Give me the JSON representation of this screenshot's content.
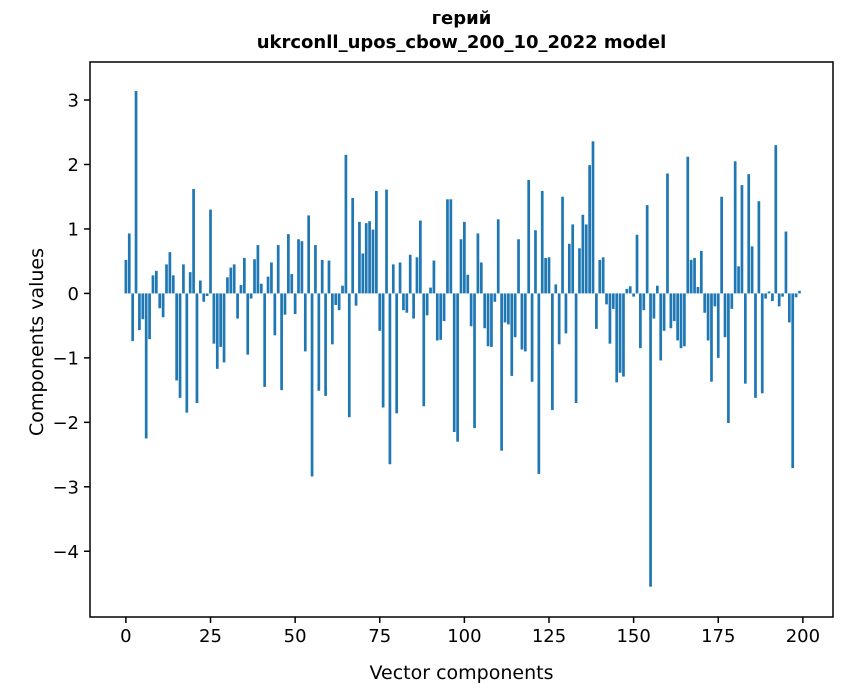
{
  "figure": {
    "title_line1": "герий",
    "title_line2": "ukrconll_upos_cbow_200_10_2022 model",
    "background_color": "#ffffff",
    "bar_color": "#1f77b4",
    "spine_color": "#000000",
    "text_color": "#000000"
  },
  "chart_data": {
    "type": "bar",
    "title": "герий",
    "subtitle": "ukrconll_upos_cbow_200_10_2022 model",
    "xlabel": "Vector components",
    "ylabel": "Components values",
    "legend": null,
    "grid": false,
    "xlim": [
      -10.6,
      208.9
    ],
    "ylim": [
      -5.02,
      3.59
    ],
    "x_ticks": [
      0,
      25,
      50,
      75,
      100,
      125,
      150,
      175,
      200
    ],
    "x_tick_labels": [
      "0",
      "25",
      "50",
      "75",
      "100",
      "125",
      "150",
      "175",
      "200"
    ],
    "y_ticks": [
      3,
      2,
      1,
      0,
      -1,
      -2,
      -3,
      -4
    ],
    "y_tick_labels": [
      "3",
      "2",
      "1",
      "0",
      "−1",
      "−2",
      "−3",
      "−4"
    ],
    "bar_width_units": 0.8,
    "values": [
      0.52,
      0.93,
      -0.74,
      3.14,
      -0.57,
      -0.4,
      -2.25,
      -0.71,
      0.28,
      0.35,
      -0.23,
      -0.37,
      0.45,
      0.64,
      0.28,
      -1.35,
      -1.62,
      0.45,
      -1.85,
      0.33,
      1.62,
      -1.7,
      0.2,
      -0.13,
      -0.04,
      1.3,
      -0.78,
      -1.17,
      -0.83,
      -1.07,
      0.25,
      0.4,
      0.45,
      -0.39,
      0.13,
      0.55,
      -0.95,
      -0.08,
      0.53,
      0.75,
      0.15,
      -1.45,
      0.26,
      0.48,
      -0.65,
      0.75,
      -1.5,
      -0.33,
      0.92,
      0.3,
      -0.32,
      0.84,
      0.81,
      -0.9,
      1.21,
      -2.84,
      0.75,
      -1.51,
      0.52,
      -1.59,
      0.51,
      -0.79,
      -0.18,
      -0.26,
      0.12,
      2.15,
      -1.92,
      1.48,
      -0.19,
      1.11,
      0.62,
      1.09,
      1.12,
      0.99,
      1.59,
      -0.58,
      -1.77,
      1.61,
      -2.65,
      0.45,
      -1.86,
      0.48,
      -0.26,
      -0.3,
      0.6,
      -0.39,
      0.56,
      1.13,
      -1.75,
      -0.34,
      0.09,
      0.51,
      -0.73,
      -0.72,
      -0.43,
      1.46,
      1.46,
      -2.15,
      -2.3,
      0.84,
      1.11,
      0.29,
      -0.51,
      -2.09,
      0.93,
      0.48,
      -0.54,
      -0.82,
      -0.83,
      -0.13,
      1.15,
      -2.44,
      -0.45,
      -0.48,
      -1.28,
      -0.68,
      0.84,
      -0.87,
      -0.9,
      1.76,
      -1.37,
      0.98,
      -2.8,
      1.59,
      0.55,
      0.56,
      -1.81,
      0.14,
      -0.79,
      1.5,
      -0.62,
      0.77,
      1.07,
      -1.7,
      0.7,
      1.22,
      1.07,
      1.99,
      2.36,
      -0.55,
      0.52,
      0.56,
      -0.17,
      -0.78,
      -0.24,
      -1.38,
      -1.23,
      -1.29,
      0.07,
      0.11,
      -0.05,
      0.91,
      -0.85,
      -0.26,
      1.37,
      -4.55,
      -0.39,
      0.12,
      -1.04,
      -0.58,
      1.86,
      -0.54,
      -0.43,
      -0.73,
      -0.85,
      -0.82,
      2.12,
      0.52,
      0.55,
      0.1,
      0.66,
      -0.3,
      -0.73,
      -1.37,
      -0.2,
      -1.0,
      1.5,
      -0.68,
      -2.01,
      -0.24,
      2.05,
      0.42,
      1.68,
      -1.4,
      1.85,
      0.73,
      -1.62,
      1.43,
      -1.55,
      -0.08,
      0.03,
      -0.12,
      2.3,
      -0.2,
      -0.05,
      0.96,
      -0.45,
      -2.71,
      -0.06,
      0.04
    ]
  }
}
